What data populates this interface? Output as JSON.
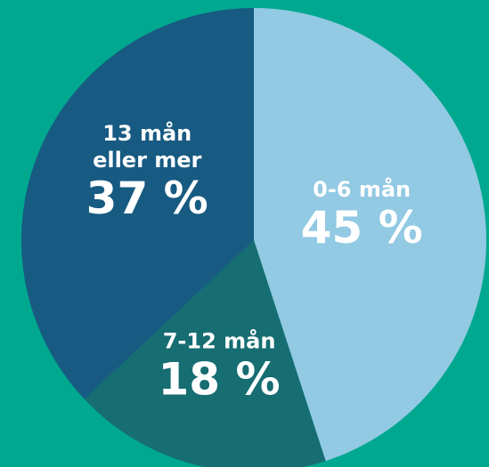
{
  "chart_data": {
    "type": "pie",
    "categories": [
      "0-6 mån",
      "7-12 mån",
      "13 mån\neller mer"
    ],
    "values": [
      45,
      18,
      37
    ],
    "value_labels": [
      "45 %",
      "18 %",
      "37 %"
    ],
    "colors": [
      "#92c9e3",
      "#166d72",
      "#175a82"
    ],
    "background": "#00a88f"
  }
}
